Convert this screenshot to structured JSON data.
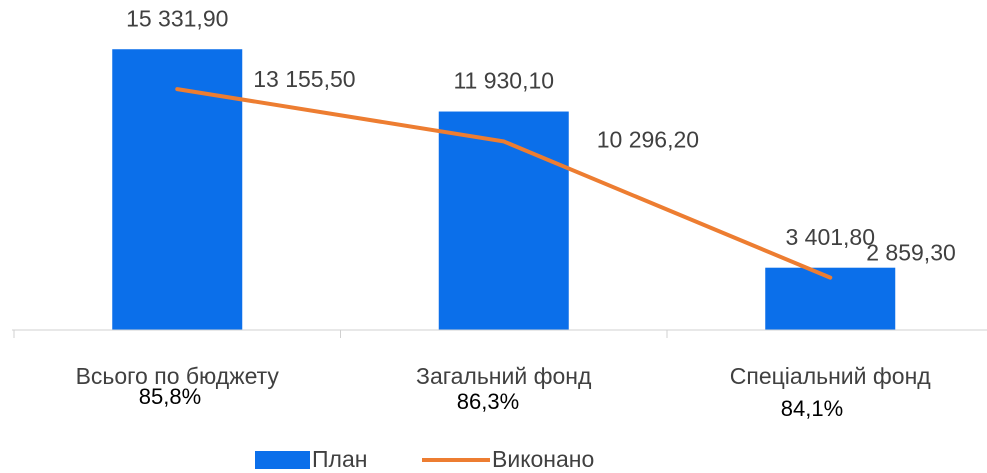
{
  "chart_data": {
    "type": "bar_line",
    "categories": [
      "Всього по бюджету",
      "Загальний фонд",
      "Спеціальний фонд"
    ],
    "series": [
      {
        "name": "План",
        "color": "#0b6fea",
        "values": [
          15331.9,
          11930.1,
          3401.8
        ],
        "value_labels": [
          "15 331,90",
          "11 930,10",
          "3 401,80"
        ]
      },
      {
        "name": "Виконано",
        "color": "#ed7d31",
        "values": [
          13155.5,
          10296.2,
          2859.3
        ],
        "value_labels": [
          "13 155,50",
          "10 296,20",
          "2 859,30"
        ]
      }
    ],
    "annotations": [
      "85,8%",
      "86,3%",
      "84,1%"
    ],
    "ylim": [
      0,
      16000
    ]
  }
}
